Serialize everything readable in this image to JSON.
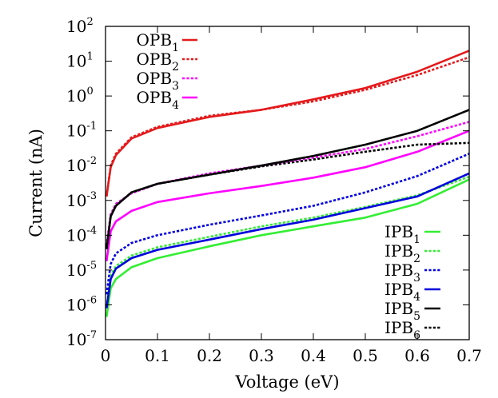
{
  "chart_data": {
    "type": "line",
    "xlabel": "Voltage (eV)",
    "ylabel": "Current (nA)",
    "xlim": [
      0,
      0.7
    ],
    "ylim": [
      1e-07,
      100
    ],
    "yscale": "log",
    "grid": false,
    "x_ticks": [
      {
        "value": 0,
        "label": "0"
      },
      {
        "value": 0.1,
        "label": "0.1"
      },
      {
        "value": 0.2,
        "label": "0.2"
      },
      {
        "value": 0.3,
        "label": "0.3"
      },
      {
        "value": 0.4,
        "label": "0.4"
      },
      {
        "value": 0.5,
        "label": "0.5"
      },
      {
        "value": 0.6,
        "label": "0.6"
      },
      {
        "value": 0.7,
        "label": "0.7"
      }
    ],
    "y_ticks": [
      {
        "value": 1e-07,
        "base": "10",
        "exp": "-7"
      },
      {
        "value": 1e-06,
        "base": "10",
        "exp": "-6"
      },
      {
        "value": 1e-05,
        "base": "10",
        "exp": "-5"
      },
      {
        "value": 0.0001,
        "base": "10",
        "exp": "-4"
      },
      {
        "value": 0.001,
        "base": "10",
        "exp": "-3"
      },
      {
        "value": 0.01,
        "base": "10",
        "exp": "-2"
      },
      {
        "value": 0.1,
        "base": "10",
        "exp": "-1"
      },
      {
        "value": 1,
        "base": "10",
        "exp": "0"
      },
      {
        "value": 10,
        "base": "10",
        "exp": "1"
      },
      {
        "value": 100,
        "base": "10",
        "exp": "2"
      }
    ],
    "legends": [
      {
        "placement": "top-left",
        "entries": [
          "OPB1",
          "OPB2",
          "OPB3",
          "OPB4"
        ]
      },
      {
        "placement": "bottom-right",
        "entries": [
          "IPB1",
          "IPB2",
          "IPB3",
          "IPB4",
          "IPB5",
          "IPB6"
        ]
      }
    ],
    "series": [
      {
        "name": "OPB1",
        "label_base": "OPB",
        "label_sub": "1",
        "color": "#e41a1c",
        "dash": "solid",
        "x": [
          0.002,
          0.01,
          0.02,
          0.05,
          0.1,
          0.2,
          0.3,
          0.4,
          0.5,
          0.6,
          0.7
        ],
        "y": [
          0.0013,
          0.009,
          0.02,
          0.06,
          0.12,
          0.25,
          0.4,
          0.8,
          1.7,
          5.0,
          20.0
        ]
      },
      {
        "name": "OPB2",
        "label_base": "OPB",
        "label_sub": "2",
        "color": "#e41a1c",
        "dash": "dotted",
        "x": [
          0.002,
          0.01,
          0.02,
          0.05,
          0.1,
          0.2,
          0.3,
          0.4,
          0.5,
          0.6,
          0.7
        ],
        "y": [
          0.0013,
          0.01,
          0.022,
          0.065,
          0.13,
          0.27,
          0.4,
          0.7,
          1.5,
          4.0,
          13.0
        ]
      },
      {
        "name": "OPB3",
        "label_base": "OPB",
        "label_sub": "3",
        "color": "#ff00ff",
        "dash": "dotted",
        "x": [
          0.002,
          0.01,
          0.02,
          0.05,
          0.1,
          0.2,
          0.3,
          0.4,
          0.5,
          0.6,
          0.7
        ],
        "y": [
          5e-05,
          0.0004,
          0.0008,
          0.0016,
          0.003,
          0.006,
          0.01,
          0.017,
          0.03,
          0.07,
          0.18
        ]
      },
      {
        "name": "OPB4",
        "label_base": "OPB",
        "label_sub": "4",
        "color": "#ff00ff",
        "dash": "solid",
        "x": [
          0.002,
          0.01,
          0.02,
          0.05,
          0.1,
          0.2,
          0.3,
          0.4,
          0.5,
          0.6,
          0.7
        ],
        "y": [
          1.8e-05,
          0.00013,
          0.00025,
          0.0005,
          0.0009,
          0.0016,
          0.0026,
          0.0045,
          0.009,
          0.025,
          0.1
        ]
      },
      {
        "name": "IPB1",
        "label_base": "IPB",
        "label_sub": "1",
        "color": "#33ee33",
        "dash": "solid",
        "x": [
          0.002,
          0.01,
          0.02,
          0.05,
          0.1,
          0.2,
          0.3,
          0.4,
          0.5,
          0.6,
          0.7
        ],
        "y": [
          4.5e-07,
          3e-06,
          5.5e-06,
          1.2e-05,
          2.2e-05,
          4.8e-05,
          0.0001,
          0.00018,
          0.00032,
          0.0008,
          0.004
        ]
      },
      {
        "name": "IPB2",
        "label_base": "IPB",
        "label_sub": "2",
        "color": "#33ee33",
        "dash": "dotted",
        "x": [
          0.002,
          0.01,
          0.02,
          0.05,
          0.1,
          0.2,
          0.3,
          0.4,
          0.5,
          0.6,
          0.7
        ],
        "y": [
          9e-07,
          7e-06,
          1.3e-05,
          2.6e-05,
          4.5e-05,
          9e-05,
          0.00018,
          0.00032,
          0.00065,
          0.0014,
          0.0048
        ]
      },
      {
        "name": "IPB3",
        "label_base": "IPB",
        "label_sub": "3",
        "color": "#0000dd",
        "dash": "dotted",
        "x": [
          0.002,
          0.01,
          0.02,
          0.05,
          0.1,
          0.2,
          0.3,
          0.4,
          0.5,
          0.6,
          0.7
        ],
        "y": [
          2e-06,
          1.5e-05,
          3e-05,
          6e-05,
          0.0001,
          0.0002,
          0.00037,
          0.0007,
          0.0017,
          0.005,
          0.022
        ]
      },
      {
        "name": "IPB4",
        "label_base": "IPB",
        "label_sub": "4",
        "color": "#0000dd",
        "dash": "solid",
        "x": [
          0.002,
          0.01,
          0.02,
          0.05,
          0.1,
          0.2,
          0.3,
          0.4,
          0.5,
          0.6,
          0.7
        ],
        "y": [
          8e-07,
          5.5e-06,
          1.1e-05,
          2.2e-05,
          3.8e-05,
          7.5e-05,
          0.00015,
          0.00028,
          0.0006,
          0.0013,
          0.006
        ]
      },
      {
        "name": "IPB5",
        "label_base": "IPB",
        "label_sub": "5",
        "color": "#000000",
        "dash": "solid",
        "x": [
          0.002,
          0.01,
          0.02,
          0.05,
          0.1,
          0.2,
          0.3,
          0.4,
          0.5,
          0.6,
          0.7
        ],
        "y": [
          4e-05,
          0.00035,
          0.0007,
          0.0017,
          0.003,
          0.0055,
          0.01,
          0.019,
          0.04,
          0.1,
          0.4
        ]
      },
      {
        "name": "IPB6",
        "label_base": "IPB",
        "label_sub": "6",
        "color": "#000000",
        "dash": "dotted",
        "x": [
          0.002,
          0.01,
          0.02,
          0.05,
          0.1,
          0.2,
          0.3,
          0.4,
          0.5,
          0.6,
          0.7
        ],
        "y": [
          4e-05,
          0.00035,
          0.0007,
          0.0017,
          0.003,
          0.0055,
          0.0095,
          0.015,
          0.025,
          0.04,
          0.045
        ]
      }
    ]
  }
}
